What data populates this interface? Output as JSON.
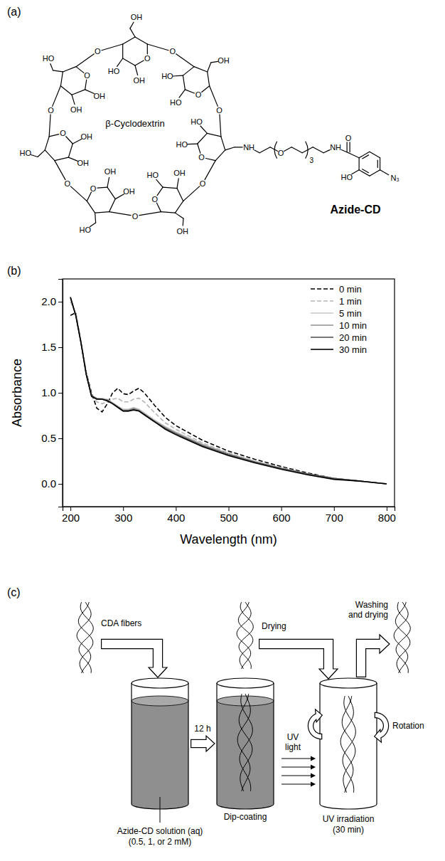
{
  "panel_labels": {
    "a": "(a)",
    "b": "(b)",
    "c": "(c)"
  },
  "structure": {
    "ring_name": "β-Cyclodextrin",
    "compound_name": "Azide-CD",
    "ring_oxygen": "O",
    "hydroxyl_right": "OH",
    "hydroxyl_left": "HO",
    "amine": "NH",
    "ether_oxygen": "O",
    "repeat": "3",
    "carbonyl_oxygen": "O",
    "phenol": "HO",
    "azide": "N₃"
  },
  "chart_data": {
    "type": "line",
    "xlabel": "Wavelength (nm)",
    "ylabel": "Absorbance",
    "x": [
      200,
      210,
      220,
      230,
      240,
      250,
      260,
      270,
      280,
      290,
      300,
      310,
      320,
      330,
      340,
      360,
      380,
      400,
      450,
      500,
      550,
      600,
      650,
      700,
      750,
      800
    ],
    "series": [
      {
        "name": "0 min",
        "color": "#000000",
        "line_style": "dashed",
        "values": [
          1.85,
          1.88,
          1.55,
          1.22,
          1.0,
          0.83,
          0.79,
          0.88,
          1.0,
          1.05,
          0.99,
          0.98,
          1.02,
          1.05,
          1.0,
          0.86,
          0.73,
          0.64,
          0.48,
          0.36,
          0.27,
          0.19,
          0.12,
          0.06,
          0.03,
          0.0
        ]
      },
      {
        "name": "1 min",
        "color": "#b4b4b4",
        "line_style": "dashed",
        "values": [
          2.0,
          1.87,
          1.55,
          1.21,
          0.98,
          0.9,
          0.88,
          0.9,
          0.93,
          0.94,
          0.9,
          0.9,
          0.93,
          0.94,
          0.9,
          0.78,
          0.67,
          0.6,
          0.45,
          0.34,
          0.25,
          0.18,
          0.11,
          0.06,
          0.03,
          0.0
        ]
      },
      {
        "name": "5 min",
        "color": "#c8c8c8",
        "line_style": "solid",
        "values": [
          2.03,
          1.86,
          1.55,
          1.2,
          0.97,
          0.94,
          0.94,
          0.93,
          0.89,
          0.85,
          0.82,
          0.82,
          0.84,
          0.82,
          0.78,
          0.7,
          0.63,
          0.57,
          0.44,
          0.33,
          0.25,
          0.17,
          0.11,
          0.06,
          0.03,
          0.0
        ]
      },
      {
        "name": "10 min",
        "color": "#969696",
        "line_style": "solid",
        "values": [
          2.04,
          1.86,
          1.55,
          1.2,
          0.97,
          0.94,
          0.93,
          0.92,
          0.89,
          0.85,
          0.81,
          0.81,
          0.83,
          0.81,
          0.77,
          0.69,
          0.62,
          0.56,
          0.43,
          0.33,
          0.24,
          0.17,
          0.11,
          0.06,
          0.03,
          0.0
        ]
      },
      {
        "name": "20 min",
        "color": "#555555",
        "line_style": "solid",
        "values": [
          2.05,
          1.85,
          1.55,
          1.2,
          0.97,
          0.93,
          0.93,
          0.92,
          0.88,
          0.84,
          0.8,
          0.8,
          0.82,
          0.8,
          0.76,
          0.68,
          0.61,
          0.55,
          0.42,
          0.32,
          0.24,
          0.17,
          0.11,
          0.06,
          0.03,
          0.0
        ]
      },
      {
        "name": "30 min",
        "color": "#000000",
        "line_style": "solid",
        "values": [
          2.05,
          1.85,
          1.55,
          1.2,
          0.96,
          0.93,
          0.93,
          0.91,
          0.88,
          0.84,
          0.8,
          0.8,
          0.81,
          0.8,
          0.76,
          0.68,
          0.6,
          0.54,
          0.41,
          0.31,
          0.23,
          0.16,
          0.1,
          0.05,
          0.03,
          0.0
        ]
      }
    ],
    "xlim": [
      185,
      815
    ],
    "ylim": [
      -0.25,
      2.25
    ],
    "xticks": [
      200,
      300,
      400,
      500,
      600,
      700,
      800
    ],
    "yticks": [
      {
        "value": 0,
        "label": "0.0"
      },
      0.5,
      {
        "value": 1,
        "label": "1.0"
      },
      1.5,
      {
        "value": 2,
        "label": "2.0"
      }
    ],
    "legend": "upper right",
    "grid": false
  },
  "scheme": {
    "fibers": "CDA fibers",
    "drying": "Drying",
    "washing": [
      "Washing",
      "and drying"
    ],
    "interval": "12 h",
    "uv_light": [
      "UV",
      "light"
    ],
    "rotation": "Rotation",
    "dip_coating": "Dip-coating",
    "uv_irradiation": [
      "UV irradiation",
      "(30 min)"
    ],
    "solution": [
      "Azide-CD solution (aq)",
      "(0.5, 1, or 2 mM)"
    ]
  }
}
